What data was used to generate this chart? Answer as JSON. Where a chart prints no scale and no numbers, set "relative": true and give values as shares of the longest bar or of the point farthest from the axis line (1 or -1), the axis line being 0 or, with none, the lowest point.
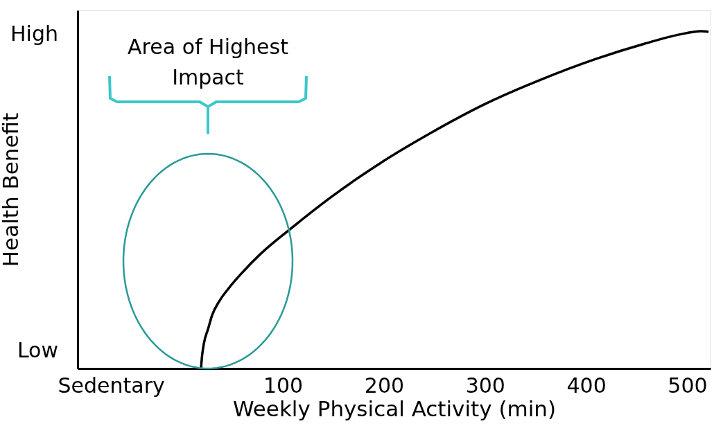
{
  "chart_data": {
    "type": "line",
    "xlabel": "Weekly Physical Activity (min)",
    "ylabel": "Health Benefit",
    "relative": true,
    "x": [
      19,
      20,
      22,
      26,
      30,
      37,
      47,
      60,
      77,
      108,
      149,
      197,
      245,
      300,
      355,
      410,
      458,
      492,
      514,
      521
    ],
    "series": [
      {
        "color": "#000000",
        "values": [
          0,
          0.035,
          0.076,
          0.117,
          0.158,
          0.199,
          0.24,
          0.285,
          0.337,
          0.415,
          0.511,
          0.61,
          0.696,
          0.784,
          0.856,
          0.918,
          0.963,
          0.99,
          1,
          0.998
        ]
      }
    ],
    "xlim": [
      -103,
      523
    ],
    "xticks": [
      {
        "value": -70,
        "label": "Sedentary"
      },
      100,
      200,
      300,
      400,
      500
    ],
    "annotations": [
      "Area of Highest\nImpact",
      "Low",
      "High"
    ],
    "grid": false,
    "marker": "none",
    "line_style": "solid"
  }
}
